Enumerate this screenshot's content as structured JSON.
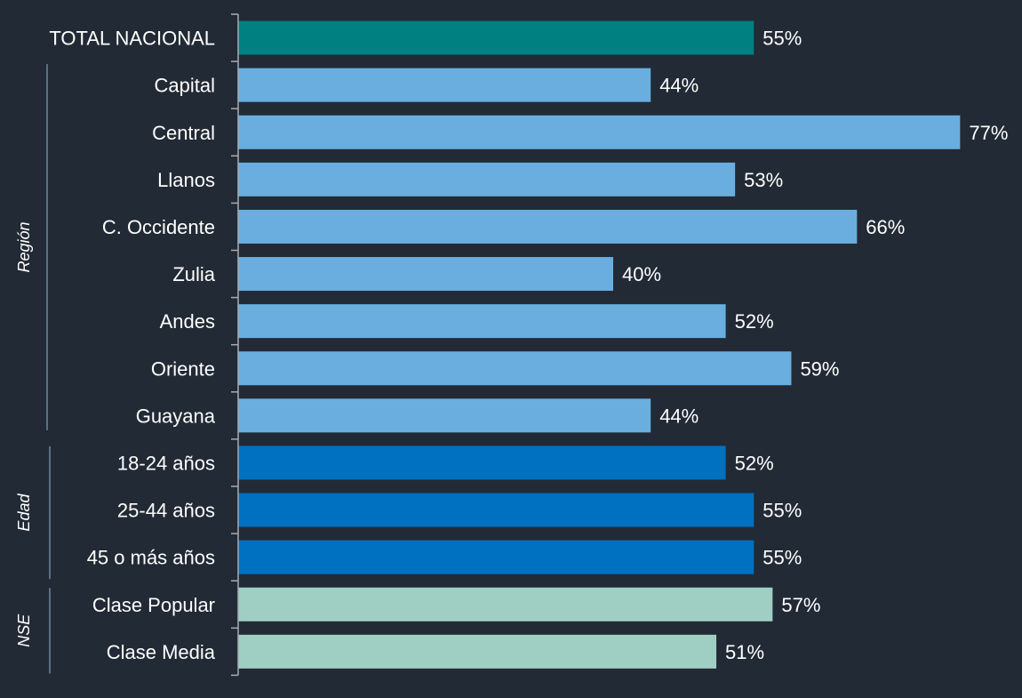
{
  "chart_data": {
    "type": "bar",
    "orientation": "horizontal",
    "title": "",
    "xlabel": "",
    "ylabel": "",
    "xlim": [
      0,
      80
    ],
    "grid": false,
    "categories": [
      "TOTAL NACIONAL",
      "Capital",
      "Central",
      "Llanos",
      "C. Occidente",
      "Zulia",
      "Andes",
      "Oriente",
      "Guayana",
      "18-24 años",
      "25-44 años",
      "45 o más años",
      "Clase Popular",
      "Clase Media"
    ],
    "values": [
      55,
      44,
      77,
      53,
      66,
      40,
      52,
      59,
      44,
      52,
      55,
      55,
      57,
      51
    ],
    "value_labels": [
      "55%",
      "44%",
      "77%",
      "53%",
      "66%",
      "40%",
      "52%",
      "59%",
      "44%",
      "52%",
      "55%",
      "55%",
      "57%",
      "51%"
    ],
    "bar_groups": [
      "total",
      "region",
      "region",
      "region",
      "region",
      "region",
      "region",
      "region",
      "region",
      "edad",
      "edad",
      "edad",
      "nse",
      "nse"
    ],
    "groups": [
      {
        "key": "region",
        "label": "Región",
        "first": 1,
        "last": 8
      },
      {
        "key": "edad",
        "label": "Edad",
        "first": 9,
        "last": 11
      },
      {
        "key": "nse",
        "label": "NSE",
        "first": 12,
        "last": 13
      }
    ],
    "colors": {
      "total": "#008080",
      "region": "#6aaee0",
      "edad": "#0070c0",
      "nse": "#9fcfc3"
    }
  }
}
